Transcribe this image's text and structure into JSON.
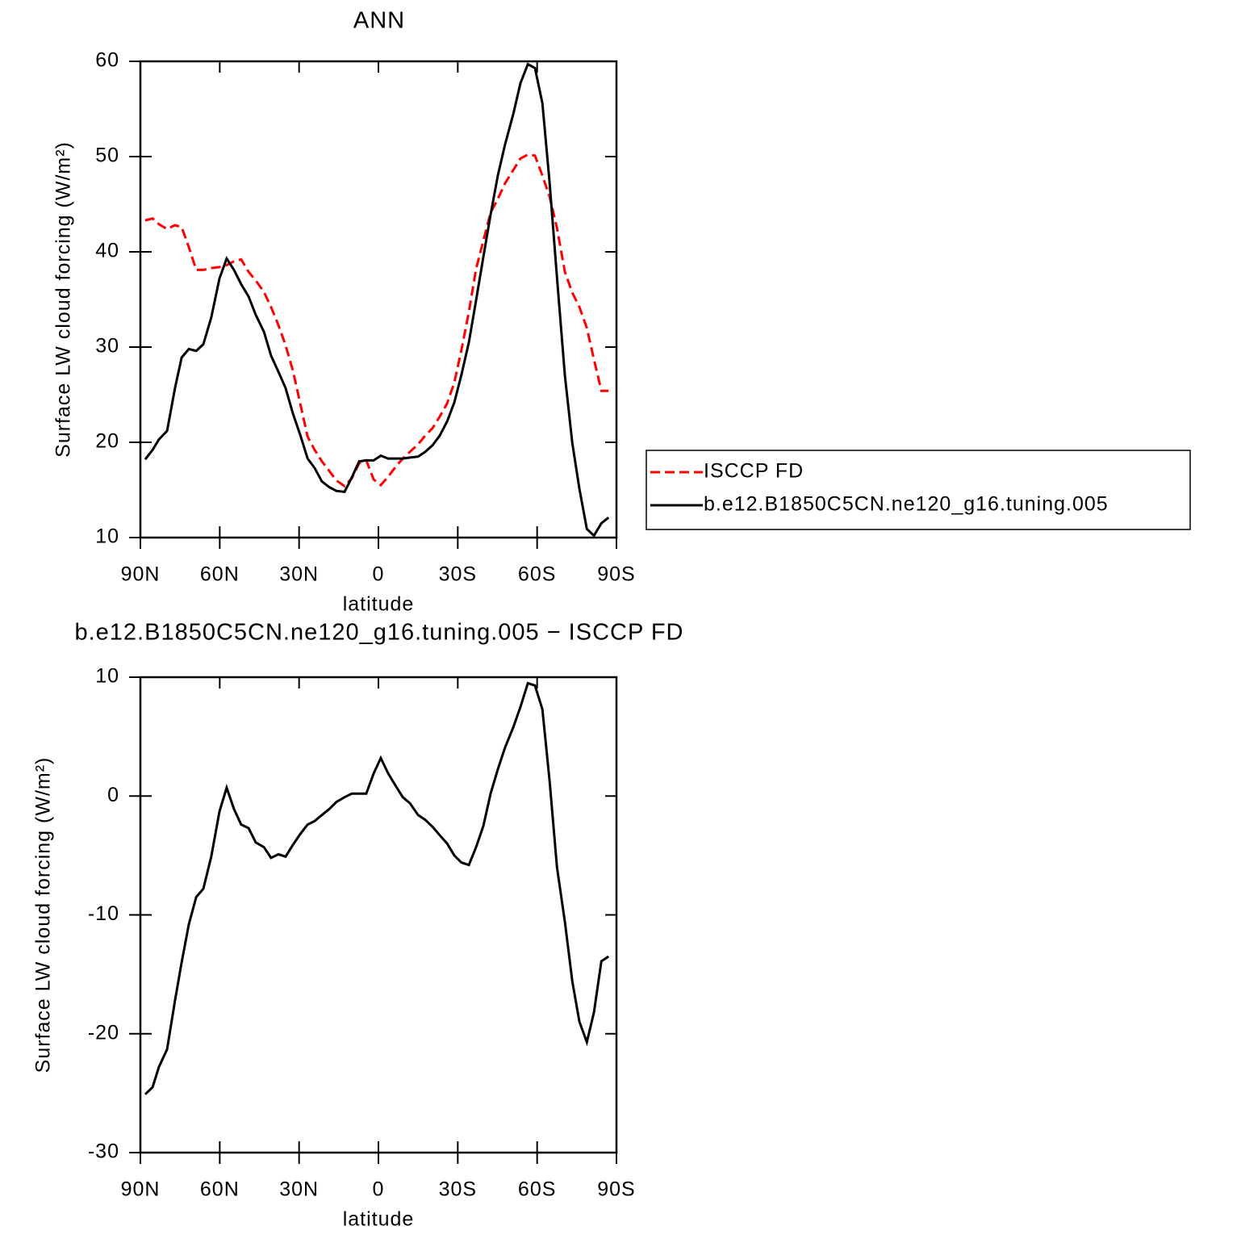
{
  "chart_data": [
    {
      "type": "line",
      "title": "ANN",
      "xlabel": "latitude",
      "ylabel": "Surface LW cloud forcing (W/m²)",
      "x": [
        88.2,
        85.4,
        83.0,
        79.9,
        76.9,
        74.4,
        71.7,
        68.9,
        66.2,
        63.2,
        60.1,
        57.4,
        54.6,
        51.9,
        49.1,
        46.4,
        43.3,
        40.6,
        37.8,
        35.1,
        32.3,
        29.6,
        26.8,
        24.1,
        21.4,
        18.6,
        15.9,
        12.8,
        10.1,
        7.3,
        4.6,
        1.8,
        -0.9,
        -3.7,
        -6.4,
        -9.2,
        -11.9,
        -15.0,
        -17.7,
        -20.5,
        -23.2,
        -26.0,
        -28.7,
        -31.4,
        -34.2,
        -36.9,
        -39.7,
        -42.4,
        -45.2,
        -47.9,
        -51.0,
        -53.7,
        -56.5,
        -59.2,
        -62.0,
        -64.7,
        -67.5,
        -70.5,
        -73.3,
        -76.0,
        -78.8,
        -81.5,
        -84.3,
        -87.0
      ],
      "series": [
        {
          "name": "ISCCP FD",
          "color": "#ff0000",
          "linestyle": "dashed",
          "values": [
            43.3,
            43.5,
            42.9,
            42.4,
            42.8,
            42.6,
            40.5,
            38.1,
            38.1,
            38.3,
            38.4,
            38.6,
            39.0,
            39.2,
            37.9,
            37.0,
            35.8,
            34.2,
            32.3,
            30.2,
            27.5,
            24.1,
            20.6,
            19.2,
            18.0,
            17.0,
            16.0,
            15.4,
            16.2,
            17.8,
            18.1,
            16.1,
            15.5,
            16.4,
            17.4,
            18.3,
            19.0,
            19.8,
            20.7,
            21.5,
            22.7,
            24.1,
            26.3,
            29.7,
            33.7,
            38.2,
            41.2,
            44.1,
            45.6,
            47.2,
            48.6,
            49.8,
            50.2,
            50.1,
            48.0,
            45.8,
            42.5,
            37.9,
            35.7,
            34.2,
            32.0,
            28.7,
            25.4,
            25.4
          ]
        },
        {
          "name": "b.e12.B1850C5CN.ne120_g16.tuning.005",
          "color": "#000000",
          "linestyle": "solid",
          "values": [
            18.2,
            19.2,
            20.3,
            21.2,
            25.7,
            28.9,
            29.8,
            29.6,
            30.3,
            33.1,
            37.2,
            39.3,
            38.1,
            36.6,
            35.3,
            33.4,
            31.6,
            29.1,
            27.4,
            25.7,
            23.0,
            20.8,
            18.3,
            17.3,
            15.9,
            15.3,
            14.9,
            14.8,
            16.3,
            18.0,
            18.1,
            18.1,
            18.6,
            18.3,
            18.3,
            18.3,
            18.4,
            18.5,
            19.0,
            19.7,
            20.7,
            22.2,
            24.2,
            27.1,
            30.5,
            34.9,
            39.5,
            43.9,
            48.1,
            51.3,
            54.5,
            57.7,
            59.7,
            59.3,
            55.6,
            47.3,
            37.3,
            27.0,
            19.9,
            15.1,
            10.9,
            10.2,
            11.5,
            12.1
          ]
        }
      ],
      "xlim": [
        90,
        -90
      ],
      "xticks": [
        {
          "value": 90,
          "label": "90N"
        },
        {
          "value": 60,
          "label": "60N"
        },
        {
          "value": 30,
          "label": "30N"
        },
        0,
        {
          "value": -30,
          "label": "30S"
        },
        {
          "value": -60,
          "label": "60S"
        },
        {
          "value": -90,
          "label": "90S"
        }
      ],
      "ylim": [
        10,
        60
      ],
      "yticks": [
        10,
        20,
        30,
        40,
        50,
        60
      ],
      "legend": "right"
    },
    {
      "type": "line",
      "title": "b.e12.B1850C5CN.ne120_g16.tuning.005 − ISCCP FD",
      "xlabel": "latitude",
      "ylabel": "Surface LW cloud forcing (W/m²)",
      "x": [
        88.2,
        85.4,
        83.0,
        79.9,
        76.9,
        74.4,
        71.7,
        68.9,
        66.2,
        63.2,
        60.1,
        57.4,
        54.6,
        51.9,
        49.1,
        46.4,
        43.3,
        40.6,
        37.8,
        35.1,
        32.3,
        29.6,
        26.8,
        24.1,
        21.4,
        18.6,
        15.9,
        12.8,
        10.1,
        7.3,
        4.6,
        1.8,
        -0.9,
        -3.7,
        -6.4,
        -9.2,
        -11.9,
        -15.0,
        -17.7,
        -20.5,
        -23.2,
        -26.0,
        -28.7,
        -31.4,
        -34.2,
        -36.9,
        -39.7,
        -42.4,
        -45.2,
        -47.9,
        -51.0,
        -53.7,
        -56.5,
        -59.2,
        -62.0,
        -64.7,
        -67.5,
        -70.5,
        -73.3,
        -76.0,
        -78.8,
        -81.5,
        -84.3,
        -87.0
      ],
      "series": [
        {
          "color": "#000000",
          "linestyle": "solid",
          "values": [
            -25.1,
            -24.5,
            -22.8,
            -21.3,
            -17.2,
            -14.0,
            -10.8,
            -8.5,
            -7.8,
            -5.1,
            -1.3,
            0.7,
            -1.1,
            -2.4,
            -2.7,
            -3.9,
            -4.3,
            -5.2,
            -4.9,
            -5.1,
            -4.1,
            -3.2,
            -2.4,
            -2.1,
            -1.6,
            -1.1,
            -0.5,
            -0.1,
            0.2,
            0.2,
            0.2,
            1.9,
            3.2,
            1.9,
            0.9,
            -0.1,
            -0.6,
            -1.6,
            -2.0,
            -2.6,
            -3.3,
            -4.0,
            -5.0,
            -5.6,
            -5.8,
            -4.3,
            -2.5,
            0.2,
            2.3,
            4.1,
            5.8,
            7.5,
            9.5,
            9.3,
            7.3,
            1.3,
            -6.0,
            -10.6,
            -15.6,
            -19.0,
            -20.7,
            -18.2,
            -13.9,
            -13.5
          ]
        }
      ],
      "xlim": [
        90,
        -90
      ],
      "xticks": [
        {
          "value": 90,
          "label": "90N"
        },
        {
          "value": 60,
          "label": "60N"
        },
        {
          "value": 30,
          "label": "30N"
        },
        0,
        {
          "value": -30,
          "label": "30S"
        },
        {
          "value": -60,
          "label": "60S"
        },
        {
          "value": -90,
          "label": "90S"
        }
      ],
      "ylim": [
        -30,
        10
      ],
      "yticks": [
        -30,
        -20,
        -10,
        0,
        10
      ]
    }
  ]
}
